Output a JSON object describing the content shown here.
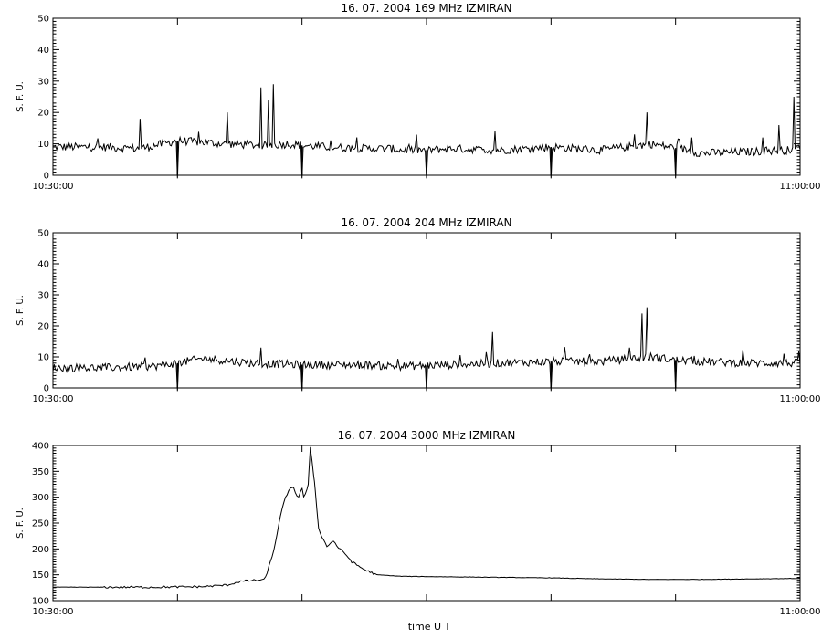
{
  "figure": {
    "xlabel": "time  U T",
    "colors": {
      "background": "#ffffff",
      "line": "#000000"
    }
  },
  "chart_data": [
    {
      "type": "line",
      "title": "16.  07.  2004    169 MHz    IZMIRAN",
      "ylabel": "S. F. U.",
      "xlim": [
        "10:30:00",
        "11:00:00"
      ],
      "ylim": [
        0,
        50
      ],
      "yticks": [
        0,
        10,
        20,
        30,
        40,
        50
      ],
      "xtick_labels": [
        "10:30:00",
        "11:00:00"
      ],
      "baseline": 9,
      "series": [
        {
          "x": [
            "10:30:00",
            "10:32:00",
            "10:33:30",
            "10:35:00",
            "10:37:00",
            "10:38:30",
            "10:39:30",
            "10:40:00",
            "10:41:00",
            "10:42:30",
            "10:43:30",
            "10:44:00",
            "10:45:00",
            "10:46:00",
            "10:48:00",
            "10:50:00",
            "10:52:00",
            "10:54:00",
            "10:55:30",
            "10:56:00",
            "10:58:00",
            "10:59:30",
            "11:00:00"
          ],
          "y": [
            9,
            9,
            8.5,
            11,
            10,
            9.5,
            10,
            9.5,
            9,
            8.5,
            8.5,
            8,
            8,
            8.5,
            8,
            9,
            8,
            10,
            8,
            7,
            7.5,
            8,
            9
          ]
        }
      ],
      "spikes": [
        {
          "t": "10:33:30",
          "v": 18
        },
        {
          "t": "10:37:00",
          "v": 20
        },
        {
          "t": "10:38:20",
          "v": 28
        },
        {
          "t": "10:38:40",
          "v": 24
        },
        {
          "t": "10:38:50",
          "v": 29
        },
        {
          "t": "10:47:45",
          "v": 14
        },
        {
          "t": "10:53:20",
          "v": 13
        },
        {
          "t": "10:53:50",
          "v": 20
        },
        {
          "t": "10:55:40",
          "v": 12
        },
        {
          "t": "10:58:30",
          "v": 12
        },
        {
          "t": "10:59:10",
          "v": 16
        },
        {
          "t": "10:59:45",
          "v": 25
        }
      ],
      "dips": [
        "10:35:00",
        "10:40:00",
        "10:45:00",
        "10:50:00",
        "10:55:00"
      ]
    },
    {
      "type": "line",
      "title": "16.  07.  2004    204 MHz    IZMIRAN",
      "ylabel": "S. F. U.",
      "xlim": [
        "10:30:00",
        "11:00:00"
      ],
      "ylim": [
        0,
        50
      ],
      "yticks": [
        0,
        10,
        20,
        30,
        40,
        50
      ],
      "xtick_labels": [
        "10:30:00",
        "11:00:00"
      ],
      "baseline": 7,
      "series": [
        {
          "x": [
            "10:30:00",
            "10:32:00",
            "10:34:00",
            "10:35:00",
            "10:36:00",
            "10:38:00",
            "10:40:00",
            "10:42:00",
            "10:44:00",
            "10:46:00",
            "10:48:00",
            "10:50:00",
            "10:52:00",
            "10:54:00",
            "10:55:00",
            "10:56:00",
            "10:58:00",
            "11:00:00"
          ],
          "y": [
            6.5,
            6.5,
            7,
            8,
            9.5,
            8,
            7.5,
            7.5,
            7,
            7.5,
            8,
            8.5,
            8.5,
            10,
            9,
            8.5,
            8,
            8
          ]
        }
      ],
      "spikes": [
        {
          "t": "10:38:20",
          "v": 13
        },
        {
          "t": "10:47:40",
          "v": 18
        },
        {
          "t": "10:53:10",
          "v": 13
        },
        {
          "t": "10:53:40",
          "v": 24
        },
        {
          "t": "10:53:50",
          "v": 26
        },
        {
          "t": "10:59:20",
          "v": 11
        }
      ],
      "dips": [
        "10:35:00",
        "10:40:00",
        "10:45:00",
        "10:50:00",
        "10:55:00"
      ]
    },
    {
      "type": "line",
      "title": "16.  07.  2004    3000 MHz    IZMIRAN",
      "ylabel": "S. F. U.",
      "xlim": [
        "10:30:00",
        "11:00:00"
      ],
      "ylim": [
        100,
        400
      ],
      "yticks": [
        100,
        150,
        200,
        250,
        300,
        350,
        400
      ],
      "xtick_labels": [
        "10:30:00",
        "11:00:00"
      ],
      "series": [
        {
          "x": [
            "10:30:00",
            "10:32:00",
            "10:34:00",
            "10:36:00",
            "10:37:00",
            "10:37:30",
            "10:38:00",
            "10:38:30",
            "10:38:50",
            "10:39:10",
            "10:39:20",
            "10:39:30",
            "10:39:40",
            "10:39:50",
            "10:40:00",
            "10:40:05",
            "10:40:15",
            "10:40:20",
            "10:40:30",
            "10:40:40",
            "10:40:50",
            "10:41:00",
            "10:41:15",
            "10:41:30",
            "10:41:45",
            "10:42:00",
            "10:42:30",
            "10:43:00",
            "10:44:00",
            "10:46:00",
            "10:48:00",
            "10:50:00",
            "10:52:00",
            "10:54:00",
            "10:56:00",
            "10:58:00",
            "11:00:00"
          ],
          "y": [
            126,
            126,
            126,
            127,
            130,
            137,
            139,
            140,
            190,
            270,
            300,
            315,
            318,
            298,
            318,
            296,
            325,
            395,
            330,
            240,
            220,
            205,
            216,
            200,
            190,
            175,
            160,
            150,
            147,
            146,
            145,
            144,
            142,
            141,
            141,
            142,
            143
          ]
        }
      ]
    }
  ]
}
